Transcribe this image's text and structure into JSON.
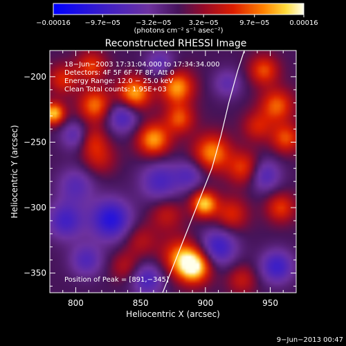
{
  "chart_data": {
    "type": "heatmap",
    "title": "Reconstructed RHESSI Image",
    "xlabel": "Heliocentric X (arcsec)",
    "ylabel": "Heliocentric Y (arcsec)",
    "xlim": [
      780,
      970
    ],
    "ylim": [
      -365,
      -180
    ],
    "x_ticks": [
      800,
      850,
      900,
      950
    ],
    "y_ticks": [
      -200,
      -250,
      -300,
      -350
    ],
    "x_tick_labels": [
      "800",
      "850",
      "900",
      "950"
    ],
    "y_tick_labels": [
      "−200",
      "−250",
      "−300",
      "−350"
    ],
    "colorbar": {
      "range": [
        -0.00016,
        0.00016
      ],
      "tick_values": [
        -0.00016,
        -9.7e-05,
        -3.2e-05,
        3.2e-05,
        9.7e-05,
        0.00016
      ],
      "tick_labels": [
        "−0.00016",
        "−9.7e−05",
        "−3.2e−05",
        "3.2e−05",
        "9.7e−05",
        "0.00016"
      ],
      "units_label": "(photons cm⁻² s⁻¹ asec⁻²)"
    },
    "annotations": [
      "18−Jun−2003 17:31:04.000 to 17:34:34.000",
      "Detectors: 4F 5F 6F 7F 8F, Att 0",
      "Energy Range: 12.0 − 25.0 keV",
      "Clean     Total counts: 1.95E+03",
      "Position of Peak = [891,−345]"
    ],
    "peak": {
      "x": 891,
      "y": -345
    },
    "limb_curve": [
      [
        867,
        -365
      ],
      [
        875,
        -345
      ],
      [
        885,
        -320
      ],
      [
        895,
        -295
      ],
      [
        905,
        -270
      ],
      [
        912,
        -245
      ],
      [
        918,
        -220
      ],
      [
        925,
        -195
      ],
      [
        930,
        -180
      ]
    ],
    "blobs": [
      {
        "x": 891,
        "y": -345,
        "v": 1.0,
        "s": 9
      },
      {
        "x": 880,
        "y": -337,
        "v": 0.55,
        "s": 10
      },
      {
        "x": 899,
        "y": -297,
        "v": 0.85,
        "s": 7
      },
      {
        "x": 860,
        "y": -248,
        "v": 0.75,
        "s": 9
      },
      {
        "x": 905,
        "y": -258,
        "v": 0.7,
        "s": 10
      },
      {
        "x": 930,
        "y": -270,
        "v": 0.55,
        "s": 9
      },
      {
        "x": 845,
        "y": -213,
        "v": 0.8,
        "s": 9
      },
      {
        "x": 878,
        "y": -208,
        "v": 0.75,
        "s": 9
      },
      {
        "x": 815,
        "y": -222,
        "v": 0.65,
        "s": 9
      },
      {
        "x": 783,
        "y": -228,
        "v": 0.85,
        "s": 6
      },
      {
        "x": 790,
        "y": -202,
        "v": 0.45,
        "s": 8
      },
      {
        "x": 812,
        "y": -192,
        "v": 0.5,
        "s": 8
      },
      {
        "x": 812,
        "y": -248,
        "v": 0.4,
        "s": 8
      },
      {
        "x": 818,
        "y": -262,
        "v": 0.35,
        "s": 9
      },
      {
        "x": 955,
        "y": -222,
        "v": 0.6,
        "s": 9
      },
      {
        "x": 945,
        "y": -195,
        "v": 0.55,
        "s": 8
      },
      {
        "x": 962,
        "y": -247,
        "v": 0.55,
        "s": 8
      },
      {
        "x": 958,
        "y": -300,
        "v": 0.5,
        "s": 8
      },
      {
        "x": 920,
        "y": -305,
        "v": 0.45,
        "s": 9
      },
      {
        "x": 870,
        "y": -305,
        "v": 0.35,
        "s": 9
      },
      {
        "x": 850,
        "y": -325,
        "v": 0.3,
        "s": 9
      },
      {
        "x": 838,
        "y": -345,
        "v": 0.3,
        "s": 8
      },
      {
        "x": 928,
        "y": -355,
        "v": 0.35,
        "s": 8
      },
      {
        "x": 880,
        "y": -232,
        "v": 0.55,
        "s": 8
      },
      {
        "x": 940,
        "y": -238,
        "v": 0.4,
        "s": 8
      },
      {
        "x": 836,
        "y": -230,
        "v": -0.55,
        "s": 9
      },
      {
        "x": 827,
        "y": -309,
        "v": -0.75,
        "s": 11
      },
      {
        "x": 792,
        "y": -310,
        "v": -0.55,
        "s": 10
      },
      {
        "x": 800,
        "y": -283,
        "v": -0.4,
        "s": 10
      },
      {
        "x": 865,
        "y": -280,
        "v": -0.5,
        "s": 11
      },
      {
        "x": 855,
        "y": -355,
        "v": -0.5,
        "s": 9
      },
      {
        "x": 910,
        "y": -330,
        "v": -0.6,
        "s": 10
      },
      {
        "x": 945,
        "y": -275,
        "v": -0.5,
        "s": 9
      },
      {
        "x": 955,
        "y": -345,
        "v": -0.6,
        "s": 9
      },
      {
        "x": 888,
        "y": -275,
        "v": -0.4,
        "s": 8
      },
      {
        "x": 917,
        "y": -205,
        "v": -0.35,
        "s": 8
      },
      {
        "x": 800,
        "y": -245,
        "v": -0.45,
        "s": 8
      },
      {
        "x": 865,
        "y": -190,
        "v": -0.4,
        "s": 8
      },
      {
        "x": 808,
        "y": -340,
        "v": -0.45,
        "s": 9
      }
    ]
  },
  "footer": {
    "timestamp": "9−Jun−2013 00:47"
  }
}
